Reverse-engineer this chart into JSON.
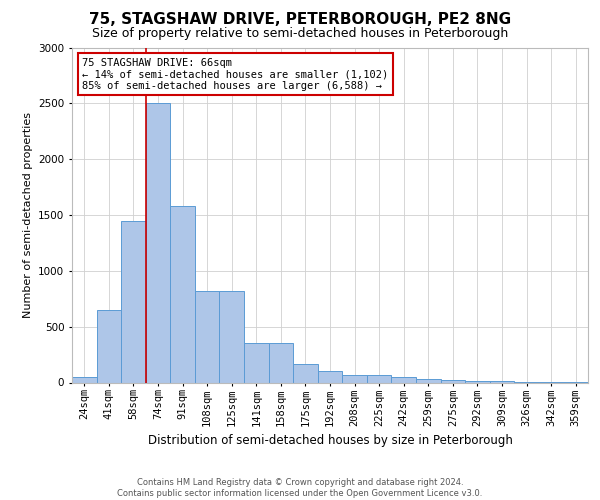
{
  "title": "75, STAGSHAW DRIVE, PETERBOROUGH, PE2 8NG",
  "subtitle": "Size of property relative to semi-detached houses in Peterborough",
  "xlabel": "Distribution of semi-detached houses by size in Peterborough",
  "ylabel": "Number of semi-detached properties",
  "footer_line1": "Contains HM Land Registry data © Crown copyright and database right 2024.",
  "footer_line2": "Contains public sector information licensed under the Open Government Licence v3.0.",
  "categories": [
    "24sqm",
    "41sqm",
    "58sqm",
    "74sqm",
    "91sqm",
    "108sqm",
    "125sqm",
    "141sqm",
    "158sqm",
    "175sqm",
    "192sqm",
    "208sqm",
    "225sqm",
    "242sqm",
    "259sqm",
    "275sqm",
    "292sqm",
    "309sqm",
    "326sqm",
    "342sqm",
    "359sqm"
  ],
  "values": [
    50,
    650,
    1450,
    2500,
    1580,
    820,
    820,
    350,
    350,
    170,
    100,
    70,
    70,
    50,
    30,
    25,
    15,
    10,
    5,
    5,
    5
  ],
  "bar_color": "#aec6e8",
  "bar_edge_color": "#5b9bd5",
  "vline_color": "#cc0000",
  "vline_x": 2.5,
  "annotation_text_line1": "75 STAGSHAW DRIVE: 66sqm",
  "annotation_text_line2": "← 14% of semi-detached houses are smaller (1,102)",
  "annotation_text_line3": "85% of semi-detached houses are larger (6,588) →",
  "annotation_box_color": "#ffffff",
  "annotation_box_edge_color": "#cc0000",
  "ylim": [
    0,
    3000
  ],
  "yticks": [
    0,
    500,
    1000,
    1500,
    2000,
    2500,
    3000
  ],
  "grid_color": "#d0d0d0",
  "background_color": "#ffffff",
  "title_fontsize": 11,
  "subtitle_fontsize": 9,
  "xlabel_fontsize": 8.5,
  "ylabel_fontsize": 8,
  "tick_fontsize": 7.5,
  "footer_fontsize": 6,
  "annotation_fontsize": 7.5
}
